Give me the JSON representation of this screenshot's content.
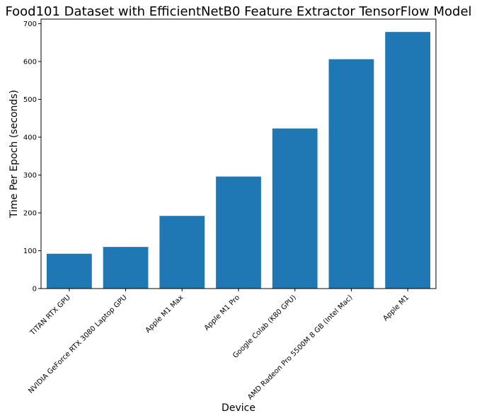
{
  "chart_data": {
    "type": "bar",
    "title": "Food101 Dataset with EfficientNetB0 Feature Extractor TensorFlow Model",
    "xlabel": "Device",
    "ylabel": "Time Per Epoch (seconds)",
    "categories": [
      "TITAN RTX GPU",
      "NVIDIA GeForce RTX 3080 Laptop GPU",
      "Apple M1 Max",
      "Apple M1 Pro",
      "Google Colab (K80 GPU)",
      "AMD Radeon Pro 5500M 8 GB (Intel Mac)",
      "Apple M1"
    ],
    "values": [
      92,
      110,
      192,
      296,
      423,
      606,
      678
    ],
    "ylim": [
      0,
      712
    ],
    "yticks": [
      0,
      100,
      200,
      300,
      400,
      500,
      600,
      700
    ],
    "grid": false,
    "bar_color": "#1f77b4",
    "xtick_rotation": -45
  }
}
